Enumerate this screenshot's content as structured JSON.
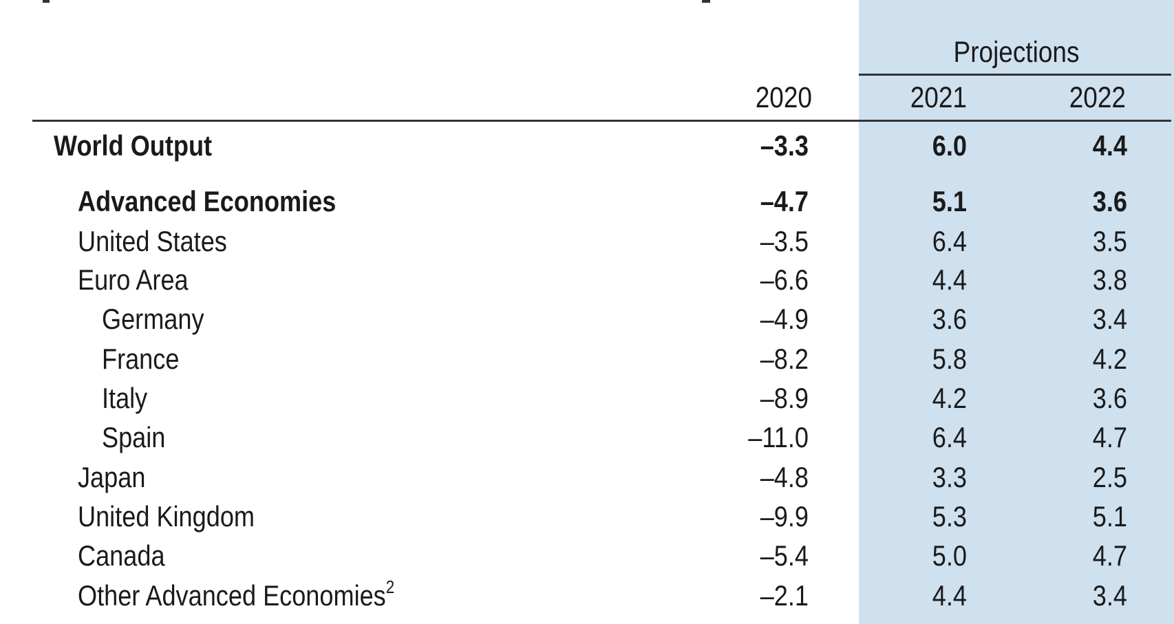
{
  "header": {
    "projections_label": "Projections",
    "years": [
      "2020",
      "2021",
      "2022"
    ]
  },
  "rows": [
    {
      "label": "World Output",
      "indent": 0,
      "bold": true,
      "values": [
        "–3.3",
        "6.0",
        "4.4"
      ]
    },
    {
      "label": "Advanced Economies",
      "indent": 1,
      "bold": true,
      "values": [
        "–4.7",
        "5.1",
        "3.6"
      ]
    },
    {
      "label": "United States",
      "indent": 1,
      "bold": false,
      "values": [
        "–3.5",
        "6.4",
        "3.5"
      ]
    },
    {
      "label": "Euro Area",
      "indent": 1,
      "bold": false,
      "values": [
        "–6.6",
        "4.4",
        "3.8"
      ]
    },
    {
      "label": "Germany",
      "indent": 2,
      "bold": false,
      "values": [
        "–4.9",
        "3.6",
        "3.4"
      ]
    },
    {
      "label": "France",
      "indent": 2,
      "bold": false,
      "values": [
        "–8.2",
        "5.8",
        "4.2"
      ]
    },
    {
      "label": "Italy",
      "indent": 2,
      "bold": false,
      "values": [
        "–8.9",
        "4.2",
        "3.6"
      ]
    },
    {
      "label": "Spain",
      "indent": 2,
      "bold": false,
      "values": [
        "–11.0",
        "6.4",
        "4.7"
      ]
    },
    {
      "label": "Japan",
      "indent": 1,
      "bold": false,
      "values": [
        "–4.8",
        "3.3",
        "2.5"
      ]
    },
    {
      "label": "United Kingdom",
      "indent": 1,
      "bold": false,
      "values": [
        "–9.9",
        "5.3",
        "5.1"
      ]
    },
    {
      "label": "Canada",
      "indent": 1,
      "bold": false,
      "values": [
        "–5.4",
        "5.0",
        "4.7"
      ]
    },
    {
      "label": "Other Advanced Economies",
      "footnote": "2",
      "indent": 1,
      "bold": false,
      "values": [
        "–2.1",
        "4.4",
        "3.4"
      ]
    }
  ],
  "colors": {
    "projection_shade": "#cfe0ef",
    "rule": "#333333",
    "text": "#1a1a1a"
  }
}
